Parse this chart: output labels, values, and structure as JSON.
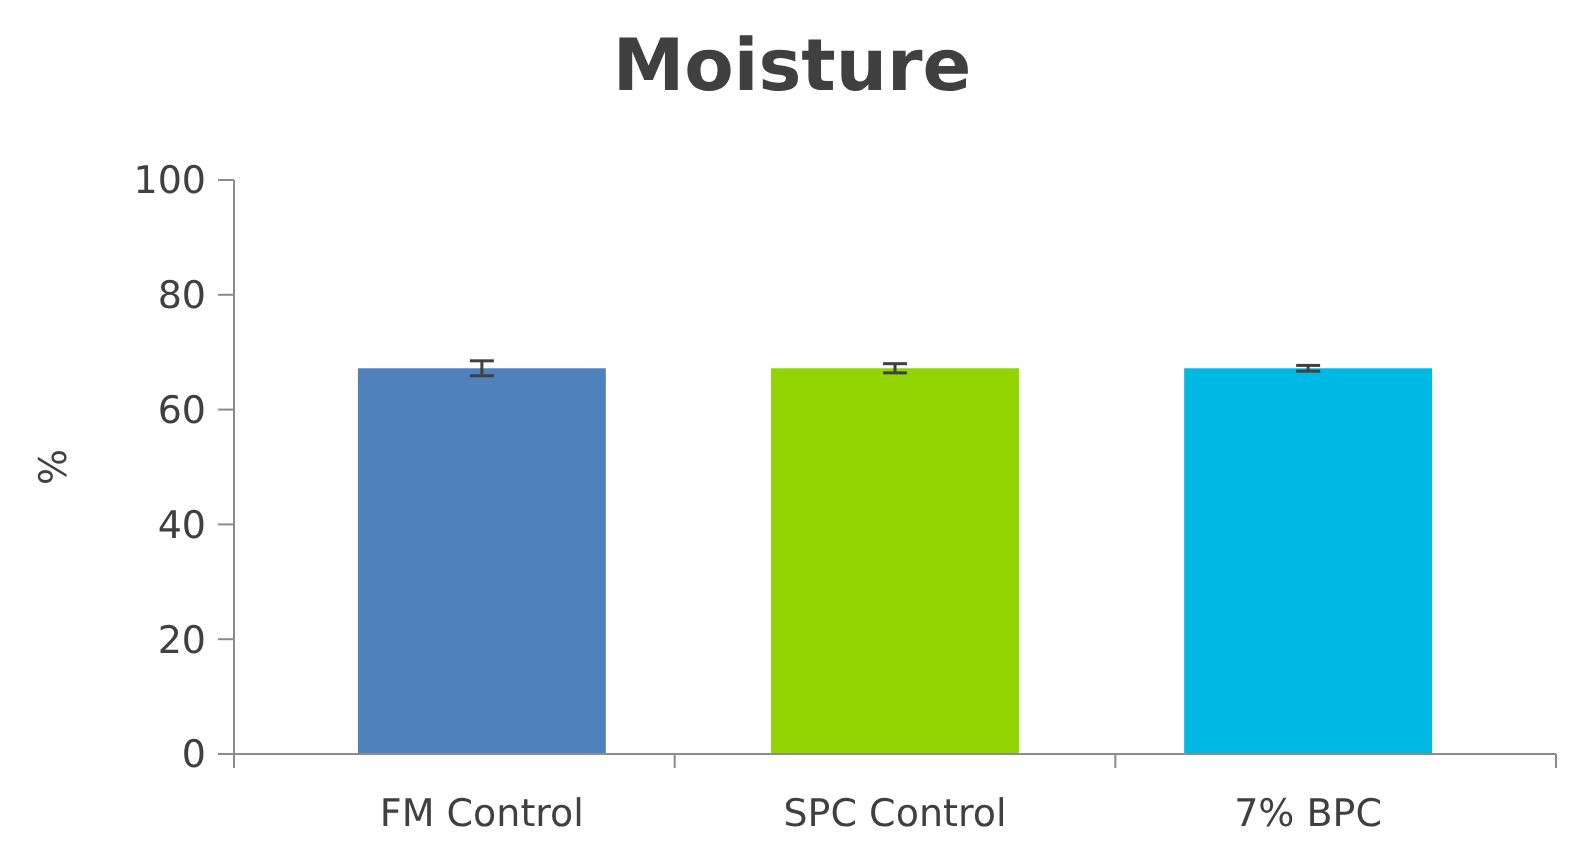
{
  "chart_data": {
    "type": "bar",
    "title": "Moisture",
    "ylabel": "%",
    "categories": [
      "FM Control",
      "SPC Control",
      "7% BPC"
    ],
    "values": [
      67.2,
      67.2,
      67.2
    ],
    "colors": [
      "#4f81bd",
      "#92d400",
      "#00b8e4"
    ],
    "errors": [
      1.3,
      0.8,
      0.5
    ],
    "ylim": [
      0,
      100
    ],
    "yticks": [
      0,
      20,
      40,
      60,
      80,
      100
    ],
    "grid": false
  }
}
